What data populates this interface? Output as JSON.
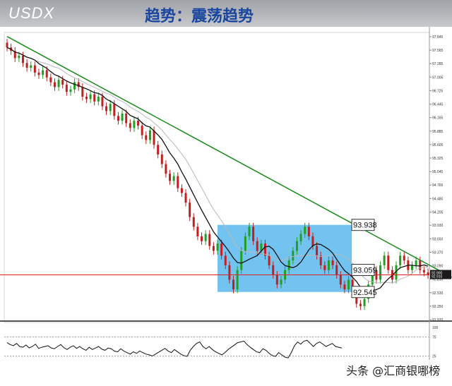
{
  "header": {
    "ticker": "USDX",
    "title": "趋势：震荡趋势"
  },
  "watermark": "头条 @汇商银哪榜",
  "chart_data": {
    "type": "candlestick",
    "ylim": [
      91.97,
      97.845
    ],
    "y_ticks": [
      "97.845",
      "97.565",
      "97.285",
      "97.005",
      "96.725",
      "96.445",
      "96.165",
      "95.885",
      "95.605",
      "95.325",
      "95.045",
      "94.765",
      "94.485",
      "94.205",
      "93.930",
      "93.650",
      "93.370",
      "93.090",
      "92.810",
      "92.530",
      "92.250",
      "91.970"
    ],
    "close_series": [
      97.62,
      97.55,
      97.4,
      97.45,
      97.3,
      97.2,
      97.25,
      97.1,
      97.05,
      97.15,
      97.0,
      96.9,
      96.8,
      96.95,
      96.85,
      96.7,
      96.75,
      96.9,
      96.8,
      96.6,
      96.55,
      96.65,
      96.5,
      96.6,
      96.4,
      96.3,
      96.45,
      96.2,
      96.1,
      96.25,
      96.05,
      95.95,
      96.1,
      96.0,
      95.8,
      95.7,
      95.9,
      95.6,
      95.4,
      95.2,
      95.0,
      94.85,
      94.95,
      94.7,
      94.6,
      94.4,
      94.1,
      93.9,
      93.7,
      93.6,
      93.75,
      93.5,
      93.4,
      93.55,
      93.3,
      93.1,
      92.8,
      92.6,
      93.0,
      93.4,
      93.7,
      93.9,
      93.6,
      93.4,
      93.55,
      93.3,
      93.1,
      92.9,
      92.7,
      92.8,
      93.0,
      93.2,
      93.4,
      93.6,
      93.75,
      93.9,
      93.7,
      93.5,
      93.3,
      93.1,
      93.0,
      93.2,
      93.1,
      92.9,
      92.7,
      92.6,
      92.8,
      92.5,
      92.3,
      92.25,
      92.4,
      92.7,
      93.0,
      92.8,
      93.1,
      93.3,
      93.0,
      92.8,
      93.1,
      93.3,
      93.2,
      93.0,
      93.1,
      93.2,
      93.0,
      92.95,
      92.9
    ],
    "price_line": {
      "value": 92.9,
      "labels": [
        "92.900",
        "92.910"
      ],
      "color": "#e02020"
    },
    "trendline": {
      "from": [
        0,
        97.85
      ],
      "to": [
        112,
        92.85
      ],
      "color": "#1a8a1a"
    },
    "range_box": {
      "from_index": 53,
      "to_index": 112,
      "top": 93.938,
      "bottom": 92.545,
      "color": "#5bb8ee"
    },
    "annotations": [
      "93.938",
      "93.059",
      "92.545"
    ],
    "rsi": {
      "ylim": [
        0,
        100
      ],
      "ticks": [
        "100",
        "75",
        "25"
      ],
      "values": [
        60,
        55,
        52,
        58,
        50,
        48,
        54,
        46,
        50,
        56,
        45,
        48,
        50,
        52,
        46,
        44,
        50,
        55,
        47,
        42,
        48,
        52,
        45,
        50,
        44,
        40,
        48,
        42,
        46,
        50,
        43,
        40,
        46,
        44,
        38,
        36,
        44,
        38,
        34,
        30,
        36,
        32,
        38,
        34,
        30,
        28,
        25,
        30,
        35,
        40,
        45,
        38,
        34,
        42,
        36,
        30,
        26,
        24,
        40,
        50,
        58,
        62,
        50,
        44,
        50,
        42,
        36,
        32,
        28,
        34,
        42,
        48,
        54,
        60,
        62,
        64,
        55,
        48,
        42,
        36,
        34,
        44,
        40,
        32,
        26,
        24,
        34,
        28,
        22,
        20,
        34,
        52,
        62,
        56,
        64,
        66,
        58,
        50,
        58,
        62,
        56,
        50,
        54,
        58,
        50,
        48,
        46
      ]
    }
  }
}
